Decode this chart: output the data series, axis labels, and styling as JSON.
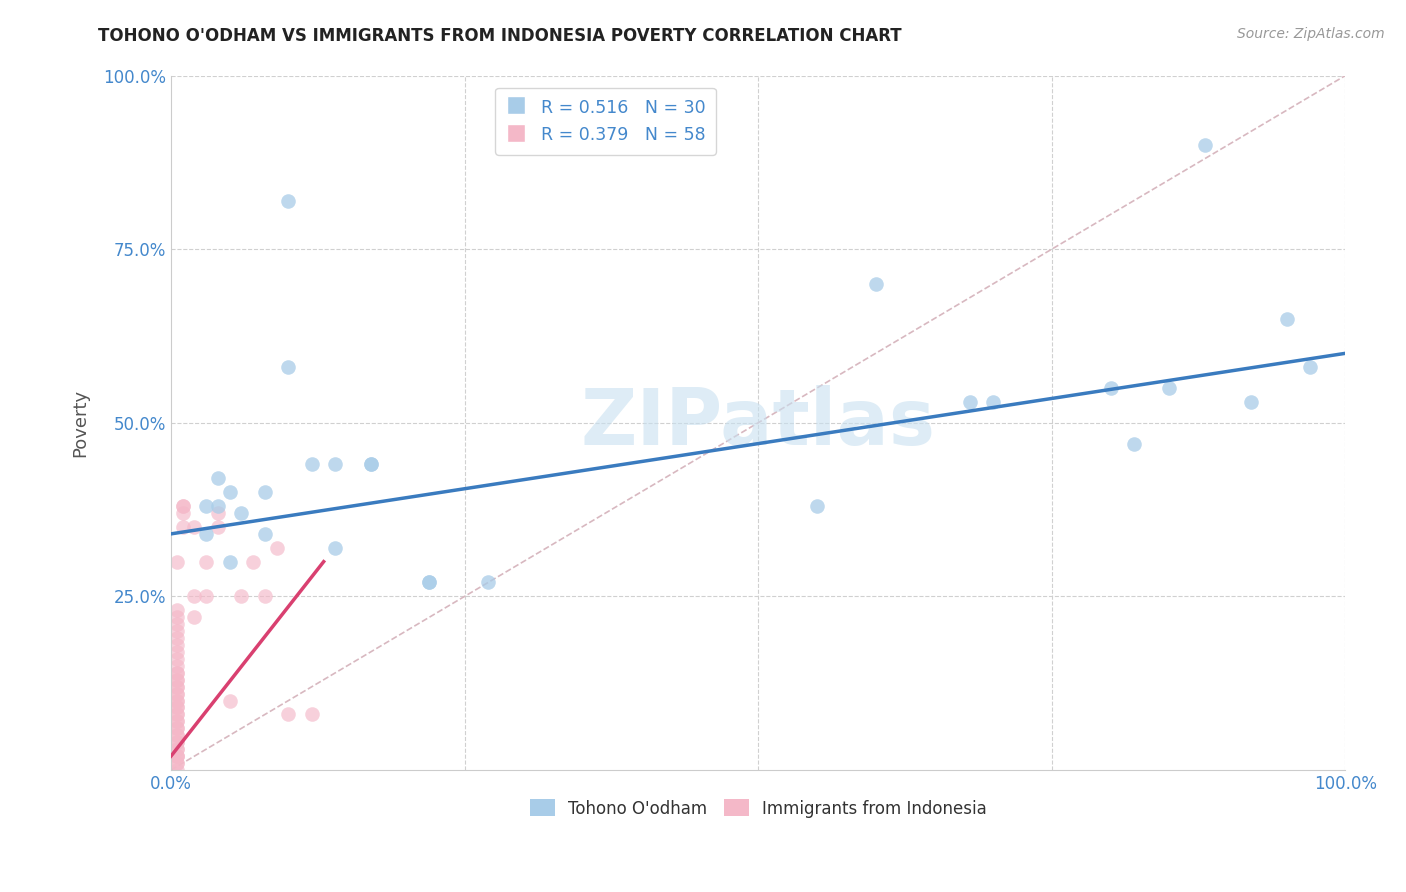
{
  "title": "TOHONO O'ODHAM VS IMMIGRANTS FROM INDONESIA POVERTY CORRELATION CHART",
  "source": "Source: ZipAtlas.com",
  "ylabel": "Poverty",
  "xlim": [
    0.0,
    1.0
  ],
  "ylim": [
    0.0,
    1.0
  ],
  "watermark": "ZIPatlas",
  "blue_R": 0.516,
  "blue_N": 30,
  "pink_R": 0.379,
  "pink_N": 58,
  "blue_color": "#a8cce8",
  "pink_color": "#f4b8c8",
  "blue_line_color": "#3a7bbf",
  "pink_line_color": "#d94070",
  "diag_color": "#cccccc",
  "blue_scatter_x": [
    0.03,
    0.08,
    0.03,
    0.04,
    0.06,
    0.05,
    0.05,
    0.04,
    0.08,
    0.1,
    0.12,
    0.14,
    0.14,
    0.17,
    0.17,
    0.22,
    0.22,
    0.27,
    0.55,
    0.6,
    0.68,
    0.7,
    0.8,
    0.82,
    0.85,
    0.88,
    0.92,
    0.95,
    0.97,
    0.1
  ],
  "blue_scatter_y": [
    0.34,
    0.34,
    0.38,
    0.38,
    0.37,
    0.3,
    0.4,
    0.42,
    0.4,
    0.58,
    0.44,
    0.44,
    0.32,
    0.44,
    0.44,
    0.27,
    0.27,
    0.27,
    0.38,
    0.7,
    0.53,
    0.53,
    0.55,
    0.47,
    0.55,
    0.9,
    0.53,
    0.65,
    0.58,
    0.82
  ],
  "pink_scatter_x": [
    0.005,
    0.005,
    0.005,
    0.005,
    0.005,
    0.005,
    0.005,
    0.005,
    0.005,
    0.005,
    0.005,
    0.005,
    0.005,
    0.005,
    0.005,
    0.005,
    0.005,
    0.005,
    0.005,
    0.005,
    0.005,
    0.005,
    0.005,
    0.005,
    0.005,
    0.005,
    0.005,
    0.005,
    0.005,
    0.005,
    0.005,
    0.005,
    0.005,
    0.005,
    0.005,
    0.005,
    0.005,
    0.005,
    0.005,
    0.005,
    0.01,
    0.01,
    0.01,
    0.01,
    0.02,
    0.02,
    0.02,
    0.03,
    0.03,
    0.04,
    0.04,
    0.05,
    0.06,
    0.07,
    0.08,
    0.09,
    0.1,
    0.12
  ],
  "pink_scatter_y": [
    0.0,
    0.01,
    0.02,
    0.03,
    0.04,
    0.05,
    0.06,
    0.07,
    0.08,
    0.09,
    0.1,
    0.11,
    0.12,
    0.13,
    0.14,
    0.15,
    0.16,
    0.17,
    0.18,
    0.19,
    0.2,
    0.21,
    0.22,
    0.23,
    0.02,
    0.03,
    0.04,
    0.05,
    0.06,
    0.07,
    0.08,
    0.09,
    0.1,
    0.11,
    0.12,
    0.13,
    0.14,
    0.01,
    0.02,
    0.3,
    0.35,
    0.38,
    0.37,
    0.38,
    0.35,
    0.25,
    0.22,
    0.3,
    0.25,
    0.35,
    0.37,
    0.1,
    0.25,
    0.3,
    0.25,
    0.32,
    0.08,
    0.08
  ],
  "background_color": "#ffffff",
  "grid_color": "#d0d0d0"
}
